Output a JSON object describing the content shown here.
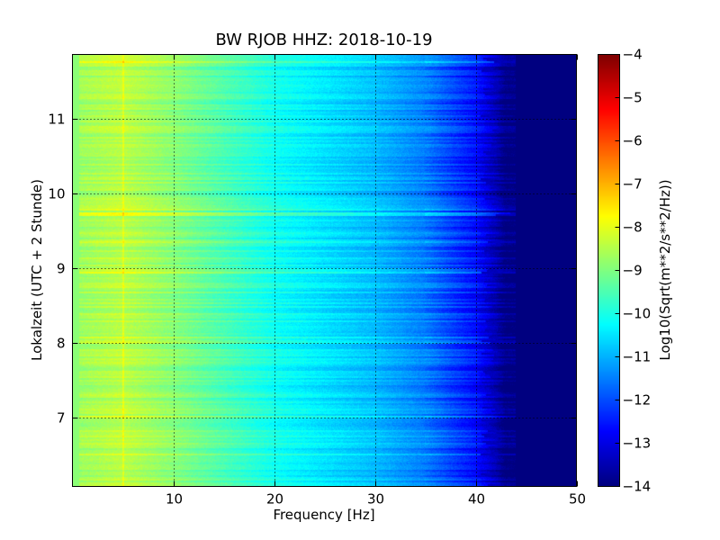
{
  "chart_data": {
    "type": "heatmap",
    "title": "BW RJOB HHZ: 2018-10-19",
    "xlabel": "Frequency [Hz]",
    "ylabel": "Lokalzeit (UTC + 2 Stunde)",
    "xlim": [
      0,
      50
    ],
    "ylim": [
      11.86,
      6.08
    ],
    "y_inverted": true,
    "xticks": [
      10,
      20,
      30,
      40,
      50
    ],
    "xtick_labels": [
      "10",
      "20",
      "30",
      "40",
      "50"
    ],
    "yticks": [
      7,
      8,
      9,
      10,
      11
    ],
    "ytick_labels": [
      "7",
      "8",
      "9",
      "10",
      "11"
    ],
    "grid": true,
    "colormap": "jet",
    "colorbar": {
      "label": "Log10(Sqrt(m**2/s**2/Hz))",
      "range": [
        -14,
        -4
      ],
      "ticks": [
        -4,
        -5,
        -6,
        -7,
        -8,
        -9,
        -10,
        -11,
        -12,
        -13,
        -14
      ],
      "tick_labels": [
        "−4",
        "−5",
        "−6",
        "−7",
        "−8",
        "−9",
        "−10",
        "−11",
        "−12",
        "−13",
        "−14"
      ]
    },
    "typical_spectrum": {
      "frequency_hz": [
        0.5,
        5,
        10,
        15,
        20,
        25,
        30,
        35,
        40,
        42,
        43,
        50
      ],
      "log10_amplitude": [
        -8.7,
        -8.4,
        -8.9,
        -9.5,
        -10.1,
        -10.5,
        -10.9,
        -11.5,
        -12.6,
        -13.4,
        -14,
        -14
      ]
    }
  }
}
